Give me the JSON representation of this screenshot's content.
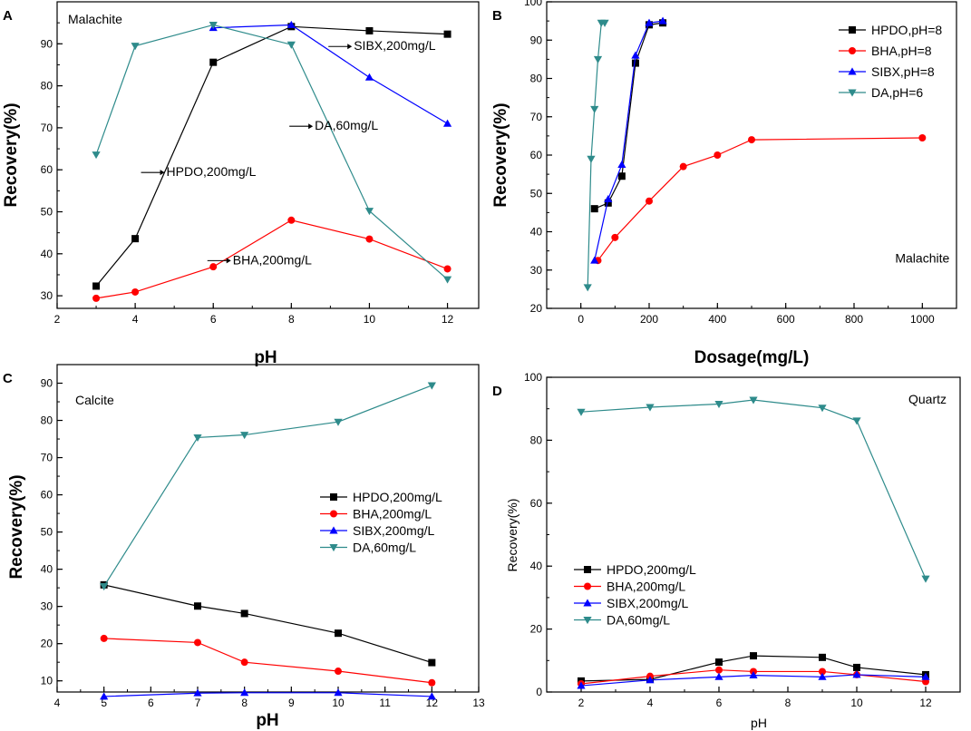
{
  "chart_data": [
    {
      "type": "line",
      "panel": "A",
      "mineral": "Malachite",
      "xlabel": "pH",
      "ylabel": "Recovery(%)",
      "xlim": [
        2,
        12.8
      ],
      "ylim": [
        27,
        100
      ],
      "xticks": [
        2,
        4,
        6,
        8,
        10,
        12
      ],
      "yticks": [
        30,
        40,
        50,
        60,
        70,
        80,
        90
      ],
      "legend_position": "none",
      "series": [
        {
          "name": "HPDO,200mg/L",
          "color": "#000000",
          "marker": "square",
          "x": [
            3,
            4,
            6,
            8,
            10,
            12
          ],
          "y": [
            32.3,
            43.6,
            85.6,
            94.1,
            93.1,
            92.3
          ]
        },
        {
          "name": "BHA,200mg/L",
          "color": "#ff0000",
          "marker": "circle",
          "x": [
            3,
            4,
            6,
            8,
            10,
            12
          ],
          "y": [
            29.4,
            30.9,
            36.9,
            48.0,
            43.5,
            36.4
          ]
        },
        {
          "name": "SIBX,200mg/L",
          "color": "#0000ff",
          "marker": "triangle-up",
          "x": [
            6,
            8,
            10,
            12
          ],
          "y": [
            93.8,
            94.5,
            82.0,
            71.0
          ]
        },
        {
          "name": "DA,60mg/L",
          "color": "#2e8b8b",
          "marker": "triangle-down",
          "x": [
            3,
            4,
            6,
            8,
            10,
            12
          ],
          "y": [
            63.6,
            89.5,
            94.5,
            89.8,
            50.2,
            33.9
          ]
        }
      ],
      "annotations": [
        {
          "text": "SIBX,200mg/L",
          "x": 9.6,
          "y": 88.5
        },
        {
          "text": "DA,60mg/L",
          "x": 8.6,
          "y": 69.5
        },
        {
          "text": "HPDO,200mg/L",
          "x": 4.8,
          "y": 58.5
        },
        {
          "text": "BHA,200mg/L",
          "x": 6.5,
          "y": 37.5
        }
      ]
    },
    {
      "type": "line",
      "panel": "B",
      "mineral": "Malachite",
      "xlabel": "Dosage(mg/L)",
      "ylabel": "Recovery(%)",
      "xlim": [
        -100,
        1100
      ],
      "ylim": [
        20,
        100
      ],
      "xticks": [
        0,
        200,
        400,
        600,
        800,
        1000
      ],
      "yticks": [
        20,
        30,
        40,
        50,
        60,
        70,
        80,
        90,
        100
      ],
      "legend_position": "top-right",
      "series": [
        {
          "name": "HPDO,pH=8",
          "color": "#000000",
          "marker": "square",
          "x": [
            40,
            80,
            120,
            160,
            200,
            240
          ],
          "y": [
            46.0,
            47.5,
            54.5,
            84.0,
            94.0,
            94.5
          ]
        },
        {
          "name": "BHA,pH=8",
          "color": "#ff0000",
          "marker": "circle",
          "x": [
            50,
            100,
            200,
            300,
            400,
            500,
            1000
          ],
          "y": [
            32.5,
            38.5,
            48.0,
            57.0,
            60.0,
            64.0,
            64.5
          ]
        },
        {
          "name": "SIBX,pH=8",
          "color": "#0000ff",
          "marker": "triangle-up",
          "x": [
            40,
            80,
            120,
            160,
            200,
            240
          ],
          "y": [
            32.5,
            48.5,
            57.5,
            86.0,
            94.5,
            95.0
          ]
        },
        {
          "name": "DA,pH=6",
          "color": "#2e8b8b",
          "marker": "triangle-down",
          "x": [
            20,
            30,
            40,
            50,
            60,
            70
          ],
          "y": [
            25.5,
            59.0,
            72.0,
            85.0,
            94.5,
            94.5
          ]
        }
      ],
      "annotations": [
        {
          "text": "Malachite",
          "x": 960,
          "y": 32
        }
      ]
    },
    {
      "type": "line",
      "panel": "C",
      "mineral": "Calcite",
      "xlabel": "pH",
      "ylabel": "Recovery(%)",
      "xlim": [
        4,
        13
      ],
      "ylim": [
        7,
        95
      ],
      "xticks": [
        4,
        5,
        6,
        7,
        8,
        9,
        10,
        11,
        12,
        13
      ],
      "yticks": [
        10,
        20,
        30,
        40,
        50,
        60,
        70,
        80,
        90
      ],
      "legend_position": "center-right",
      "series": [
        {
          "name": "HPDO,200mg/L",
          "color": "#000000",
          "marker": "square",
          "x": [
            5,
            7,
            8,
            10,
            12
          ],
          "y": [
            35.8,
            30.1,
            28.1,
            22.8,
            14.9
          ]
        },
        {
          "name": "BHA,200mg/L",
          "color": "#ff0000",
          "marker": "circle",
          "x": [
            5,
            7,
            8,
            10,
            12
          ],
          "y": [
            21.4,
            20.3,
            15.0,
            12.6,
            9.5
          ]
        },
        {
          "name": "SIBX,200mg/L",
          "color": "#0000ff",
          "marker": "triangle-up",
          "x": [
            5,
            7,
            8,
            10,
            12
          ],
          "y": [
            5.8,
            6.7,
            6.8,
            6.8,
            5.8
          ]
        },
        {
          "name": "DA,60mg/L",
          "color": "#2e8b8b",
          "marker": "triangle-down",
          "x": [
            5,
            7,
            8,
            10,
            12
          ],
          "y": [
            35.4,
            75.4,
            76.1,
            79.6,
            89.4
          ]
        }
      ]
    },
    {
      "type": "line",
      "panel": "D",
      "mineral": "Quartz",
      "xlabel": "pH",
      "ylabel": "Recovery(%)",
      "xlim": [
        1,
        13
      ],
      "ylim": [
        0,
        100
      ],
      "xticks": [
        2,
        4,
        6,
        8,
        10,
        12
      ],
      "yticks": [
        0,
        20,
        40,
        60,
        80,
        100
      ],
      "legend_position": "bottom-left",
      "series": [
        {
          "name": "HPDO,200mg/L",
          "color": "#000000",
          "marker": "square",
          "x": [
            2,
            4,
            6,
            7,
            9,
            10,
            12
          ],
          "y": [
            3.5,
            4.0,
            9.5,
            11.5,
            11.0,
            7.8,
            5.5
          ]
        },
        {
          "name": "BHA,200mg/L",
          "color": "#ff0000",
          "marker": "circle",
          "x": [
            2,
            4,
            6,
            7,
            9,
            10,
            12
          ],
          "y": [
            2.6,
            5.0,
            7.0,
            6.5,
            6.5,
            5.5,
            3.3
          ]
        },
        {
          "name": "SIBX,200mg/L",
          "color": "#0000ff",
          "marker": "triangle-up",
          "x": [
            2,
            4,
            6,
            7,
            9,
            10,
            12
          ],
          "y": [
            2.0,
            3.8,
            4.8,
            5.3,
            4.8,
            5.5,
            4.8
          ]
        },
        {
          "name": "DA,60mg/L",
          "color": "#2e8b8b",
          "marker": "triangle-down",
          "x": [
            2,
            4,
            6,
            7,
            9,
            10,
            12
          ],
          "y": [
            89.0,
            90.5,
            91.5,
            92.8,
            90.3,
            86.2,
            36.0
          ]
        }
      ]
    }
  ]
}
